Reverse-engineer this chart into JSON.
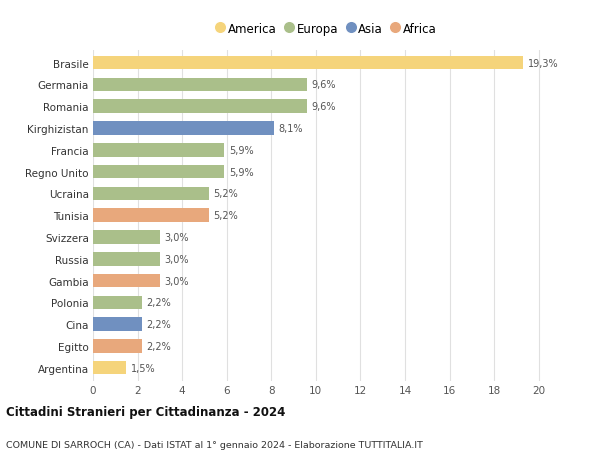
{
  "countries": [
    "Brasile",
    "Germania",
    "Romania",
    "Kirghizistan",
    "Francia",
    "Regno Unito",
    "Ucraina",
    "Tunisia",
    "Svizzera",
    "Russia",
    "Gambia",
    "Polonia",
    "Cina",
    "Egitto",
    "Argentina"
  ],
  "values": [
    19.3,
    9.6,
    9.6,
    8.1,
    5.9,
    5.9,
    5.2,
    5.2,
    3.0,
    3.0,
    3.0,
    2.2,
    2.2,
    2.2,
    1.5
  ],
  "labels": [
    "19,3%",
    "9,6%",
    "9,6%",
    "8,1%",
    "5,9%",
    "5,9%",
    "5,2%",
    "5,2%",
    "3,0%",
    "3,0%",
    "3,0%",
    "2,2%",
    "2,2%",
    "2,2%",
    "1,5%"
  ],
  "continents": [
    "America",
    "Europa",
    "Europa",
    "Asia",
    "Europa",
    "Europa",
    "Europa",
    "Africa",
    "Europa",
    "Europa",
    "Africa",
    "Europa",
    "Asia",
    "Africa",
    "America"
  ],
  "colors": {
    "America": "#F5D47B",
    "Europa": "#AABF8A",
    "Asia": "#7090C0",
    "Africa": "#E8A87C"
  },
  "legend_order": [
    "America",
    "Europa",
    "Asia",
    "Africa"
  ],
  "legend_colors": [
    "#F5D47B",
    "#AABF8A",
    "#7090C0",
    "#E8A87C"
  ],
  "title": "Cittadini Stranieri per Cittadinanza - 2024",
  "subtitle": "COMUNE DI SARROCH (CA) - Dati ISTAT al 1° gennaio 2024 - Elaborazione TUTTITALIA.IT",
  "xlim": [
    0,
    21
  ],
  "xticks": [
    0,
    2,
    4,
    6,
    8,
    10,
    12,
    14,
    16,
    18,
    20
  ],
  "background_color": "#ffffff",
  "grid_color": "#e0e0e0",
  "bar_height": 0.62
}
